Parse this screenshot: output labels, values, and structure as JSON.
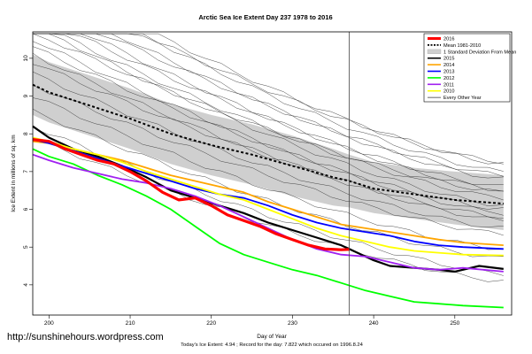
{
  "chart_data": {
    "type": "line",
    "title": "Arctic Sea Ice Extent Day 237 1978 to 2016",
    "xlabel": "Day of Year",
    "ylabel": "Ice Extent in millions of sq. km",
    "xlim": [
      198,
      257
    ],
    "ylim": [
      3.2,
      10.7
    ],
    "xticks": [
      200,
      210,
      220,
      230,
      240,
      250
    ],
    "yticks": [
      4,
      5,
      6,
      7,
      8,
      9,
      10
    ],
    "marker_day": 237,
    "legend_position": "top-right",
    "legend": [
      {
        "label": "2016",
        "color": "#ff0000",
        "style": "thick"
      },
      {
        "label": "Mean 1981-2010",
        "color": "#000000",
        "style": "dashed"
      },
      {
        "label": "1 Standard Deviation From Mean",
        "color": "#c8c8c8",
        "style": "band"
      },
      {
        "label": "2015",
        "color": "#000000",
        "style": "solid"
      },
      {
        "label": "2014",
        "color": "#ffa500",
        "style": "solid"
      },
      {
        "label": "2013",
        "color": "#0000ff",
        "style": "solid"
      },
      {
        "label": "2012",
        "color": "#00ff00",
        "style": "solid"
      },
      {
        "label": "2011",
        "color": "#a020f0",
        "style": "solid"
      },
      {
        "label": "2010",
        "color": "#ffff00",
        "style": "solid"
      },
      {
        "label": "Every Other Year",
        "color": "#000000",
        "style": "thin"
      }
    ],
    "mean": {
      "x": [
        198,
        200,
        205,
        210,
        215,
        220,
        225,
        230,
        235,
        237,
        240,
        245,
        250,
        256
      ],
      "y": [
        9.3,
        9.1,
        8.75,
        8.4,
        8.0,
        7.7,
        7.45,
        7.15,
        6.85,
        6.75,
        6.55,
        6.4,
        6.25,
        6.15
      ]
    },
    "std_band": {
      "x": [
        198,
        200,
        205,
        210,
        215,
        220,
        225,
        230,
        235,
        237,
        240,
        245,
        250,
        256
      ],
      "upper": [
        10.1,
        9.9,
        9.55,
        9.2,
        8.8,
        8.5,
        8.25,
        7.95,
        7.6,
        7.45,
        7.25,
        7.1,
        7.0,
        6.9
      ],
      "lower": [
        8.5,
        8.3,
        7.95,
        7.6,
        7.2,
        6.9,
        6.65,
        6.35,
        6.1,
        6.05,
        5.9,
        5.75,
        5.6,
        5.45
      ]
    },
    "series": [
      {
        "name": "2015",
        "color": "#000000",
        "width": 2.2,
        "x": [
          198,
          200,
          203,
          206,
          209,
          212,
          215,
          218,
          221,
          224,
          227,
          230,
          233,
          236,
          238,
          240,
          242,
          245,
          248,
          250,
          253,
          256
        ],
        "y": [
          8.2,
          7.9,
          7.6,
          7.4,
          7.15,
          6.85,
          6.5,
          6.3,
          6.1,
          5.9,
          5.65,
          5.45,
          5.25,
          5.05,
          4.85,
          4.65,
          4.5,
          4.45,
          4.4,
          4.35,
          4.5,
          4.42
        ]
      },
      {
        "name": "2014",
        "color": "#ffa500",
        "width": 1.8,
        "x": [
          198,
          200,
          203,
          206,
          209,
          212,
          215,
          218,
          221,
          224,
          227,
          230,
          233,
          236,
          239,
          242,
          245,
          248,
          251,
          256
        ],
        "y": [
          7.8,
          7.75,
          7.6,
          7.45,
          7.3,
          7.1,
          6.9,
          6.75,
          6.6,
          6.45,
          6.2,
          6.0,
          5.8,
          5.6,
          5.5,
          5.4,
          5.3,
          5.2,
          5.12,
          5.05
        ]
      },
      {
        "name": "2013",
        "color": "#0000ff",
        "width": 1.8,
        "x": [
          198,
          200,
          203,
          206,
          209,
          212,
          215,
          218,
          221,
          224,
          227,
          230,
          233,
          236,
          239,
          242,
          245,
          248,
          251,
          256
        ],
        "y": [
          7.85,
          7.75,
          7.55,
          7.35,
          7.15,
          6.95,
          6.75,
          6.55,
          6.4,
          6.3,
          6.1,
          5.85,
          5.65,
          5.5,
          5.4,
          5.3,
          5.15,
          5.05,
          5.0,
          4.95
        ]
      },
      {
        "name": "2012",
        "color": "#00ff00",
        "width": 1.8,
        "x": [
          198,
          200,
          203,
          206,
          209,
          212,
          215,
          218,
          221,
          224,
          227,
          230,
          233,
          236,
          239,
          242,
          245,
          248,
          251,
          256
        ],
        "y": [
          7.6,
          7.4,
          7.2,
          6.9,
          6.65,
          6.35,
          6.0,
          5.55,
          5.1,
          4.8,
          4.6,
          4.4,
          4.25,
          4.05,
          3.85,
          3.7,
          3.55,
          3.5,
          3.45,
          3.4
        ]
      },
      {
        "name": "2011",
        "color": "#a020f0",
        "width": 1.8,
        "x": [
          198,
          200,
          203,
          206,
          209,
          212,
          215,
          218,
          221,
          224,
          227,
          230,
          233,
          236,
          239,
          242,
          245,
          248,
          251,
          256
        ],
        "y": [
          7.45,
          7.3,
          7.1,
          6.95,
          6.8,
          6.7,
          6.55,
          6.35,
          6.1,
          5.8,
          5.5,
          5.2,
          4.95,
          4.8,
          4.75,
          4.6,
          4.45,
          4.4,
          4.45,
          4.35
        ]
      },
      {
        "name": "2010",
        "color": "#ffff00",
        "width": 1.8,
        "x": [
          198,
          200,
          203,
          206,
          209,
          212,
          215,
          218,
          221,
          224,
          227,
          230,
          233,
          236,
          239,
          242,
          245,
          248,
          251,
          256
        ],
        "y": [
          7.9,
          7.8,
          7.6,
          7.45,
          7.25,
          7.0,
          6.8,
          6.6,
          6.4,
          6.25,
          6.0,
          5.75,
          5.5,
          5.3,
          5.15,
          5.0,
          4.9,
          4.85,
          4.8,
          4.78
        ]
      },
      {
        "name": "2016",
        "color": "#ff0000",
        "width": 3.2,
        "x": [
          198,
          200,
          202,
          204,
          206,
          208,
          210,
          212,
          214,
          216,
          218,
          220,
          222,
          224,
          226,
          228,
          230,
          232,
          234,
          236,
          237
        ],
        "y": [
          7.85,
          7.8,
          7.6,
          7.45,
          7.3,
          7.2,
          7.0,
          6.75,
          6.45,
          6.25,
          6.3,
          6.1,
          5.85,
          5.7,
          5.55,
          5.35,
          5.2,
          5.05,
          4.95,
          4.93,
          4.94
        ]
      }
    ],
    "other_years": [
      {
        "start": 12.4,
        "end": 7.2
      },
      {
        "start": 12.2,
        "end": 7.0
      },
      {
        "start": 12.1,
        "end": 7.25
      },
      {
        "start": 11.8,
        "end": 6.8
      },
      {
        "start": 11.6,
        "end": 6.9
      },
      {
        "start": 11.4,
        "end": 6.5
      },
      {
        "start": 11.2,
        "end": 6.6
      },
      {
        "start": 11.0,
        "end": 6.3
      },
      {
        "start": 10.9,
        "end": 6.1
      },
      {
        "start": 10.7,
        "end": 6.45
      },
      {
        "start": 10.5,
        "end": 5.9
      },
      {
        "start": 10.3,
        "end": 6.0
      },
      {
        "start": 10.1,
        "end": 5.7
      },
      {
        "start": 9.9,
        "end": 5.8
      },
      {
        "start": 9.6,
        "end": 5.5
      },
      {
        "start": 9.3,
        "end": 5.35
      },
      {
        "start": 9.0,
        "end": 4.95
      },
      {
        "start": 8.6,
        "end": 4.7
      },
      {
        "start": 8.2,
        "end": 4.3
      },
      {
        "start": 7.9,
        "end": 4.1
      }
    ]
  },
  "footer": {
    "watermark": "http://sunshinehours.wordpress.com",
    "summary": "Today's Ice Extent: 4.94  ; Record for the day: 7.822 which occured on 1996.8.24"
  }
}
